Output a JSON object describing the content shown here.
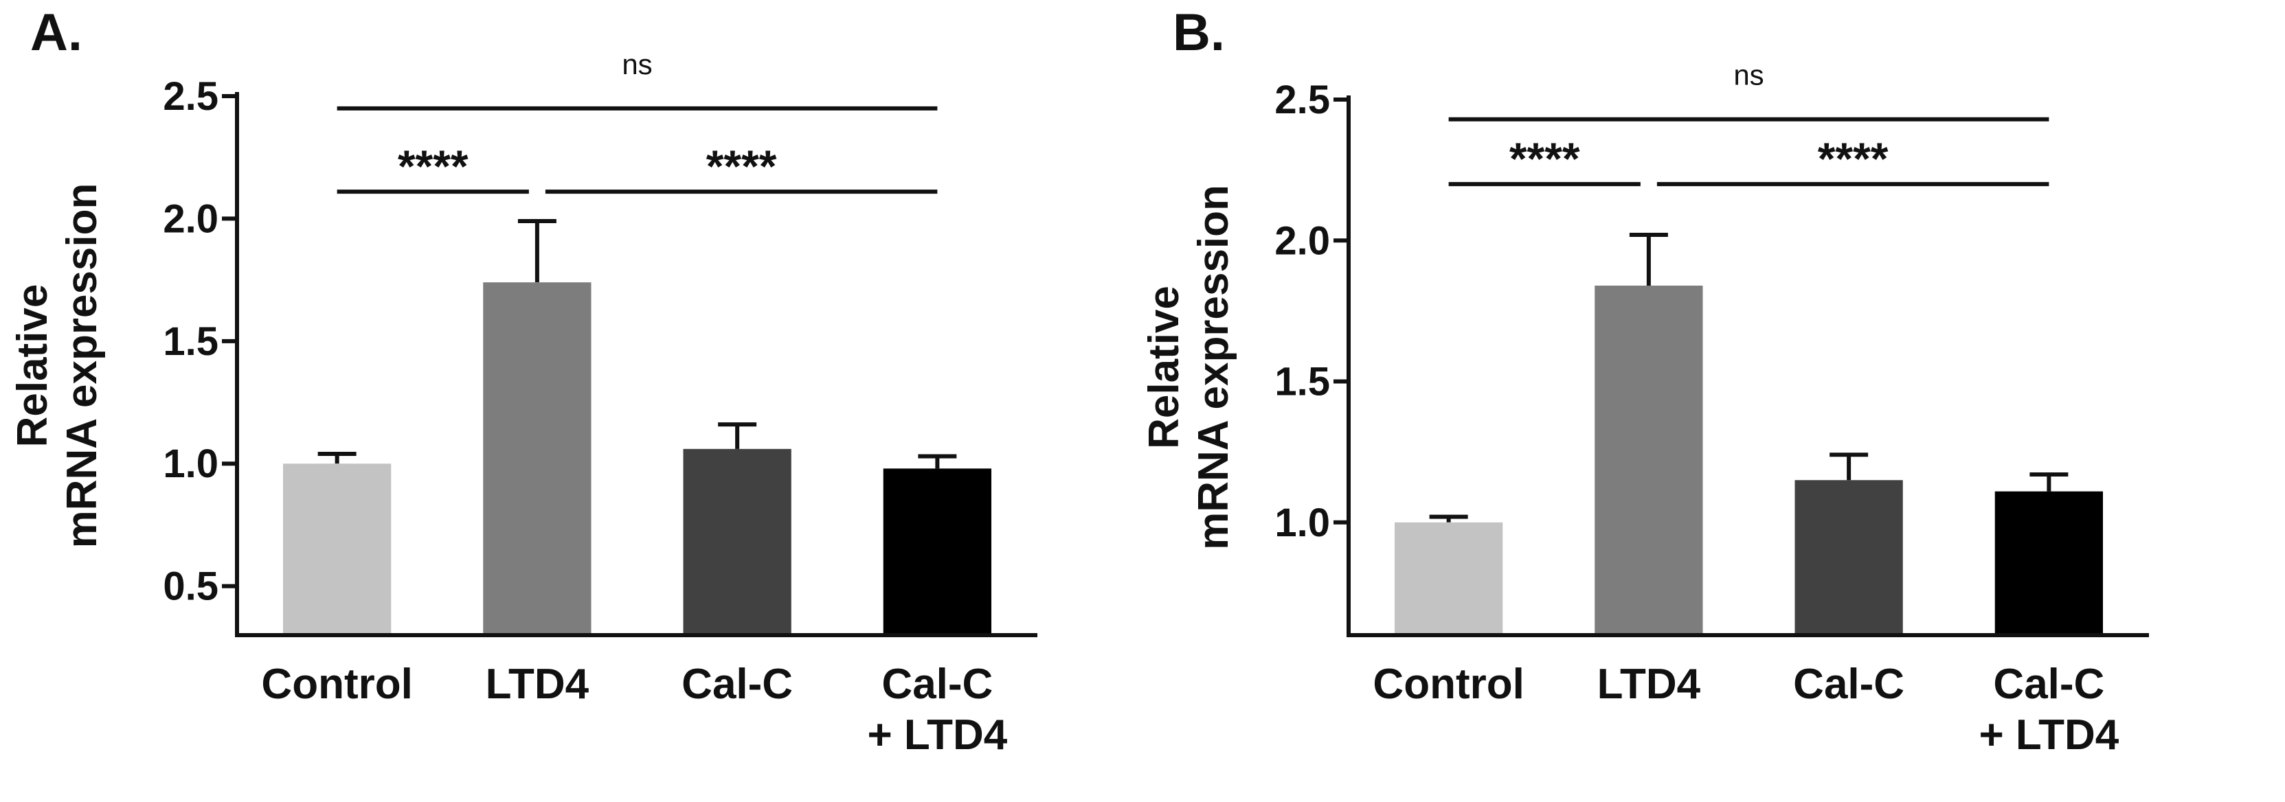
{
  "chart_data": [
    {
      "type": "bar",
      "panel_label": "A.",
      "ylabel": [
        "Relative",
        "mRNA expression"
      ],
      "categories": [
        [
          "Control"
        ],
        [
          "LTD4"
        ],
        [
          "Cal-C"
        ],
        [
          "Cal-C",
          "+ LTD4"
        ]
      ],
      "values": [
        1.0,
        1.74,
        1.06,
        0.98
      ],
      "errors": [
        0.04,
        0.25,
        0.1,
        0.05
      ],
      "colors": [
        "#c3c3c3",
        "#7d7d7d",
        "#414141",
        "#000000"
      ],
      "ylim": [
        0.3,
        2.5
      ],
      "yticks": [
        "0.5",
        "1.0",
        "1.5",
        "2.0",
        "2.5"
      ],
      "ytick_values": [
        0.5,
        1.0,
        1.5,
        2.0,
        2.5
      ],
      "significance": [
        {
          "from": 0,
          "to": 3,
          "label": "ns",
          "level": 2.45
        },
        {
          "from": 0,
          "to": 1,
          "label": "****",
          "level": 2.11
        },
        {
          "from": 1,
          "to": 3,
          "label": "****",
          "level": 2.11
        }
      ]
    },
    {
      "type": "bar",
      "panel_label": "B.",
      "ylabel": [
        "Relative",
        "mRNA expression"
      ],
      "categories": [
        [
          "Control"
        ],
        [
          "LTD4"
        ],
        [
          "Cal-C"
        ],
        [
          "Cal-C",
          "+ LTD4"
        ]
      ],
      "values": [
        1.0,
        1.84,
        1.15,
        1.11
      ],
      "errors": [
        0.02,
        0.18,
        0.09,
        0.06
      ],
      "colors": [
        "#c3c3c3",
        "#7d7d7d",
        "#414141",
        "#000000"
      ],
      "ylim": [
        0.6,
        2.5
      ],
      "yticks": [
        "1.0",
        "1.5",
        "2.0",
        "2.5"
      ],
      "ytick_values": [
        1.0,
        1.5,
        2.0,
        2.5
      ],
      "significance": [
        {
          "from": 0,
          "to": 3,
          "label": "ns",
          "level": 2.43
        },
        {
          "from": 0,
          "to": 1,
          "label": "****",
          "level": 2.2
        },
        {
          "from": 1,
          "to": 3,
          "label": "****",
          "level": 2.2
        }
      ]
    }
  ]
}
